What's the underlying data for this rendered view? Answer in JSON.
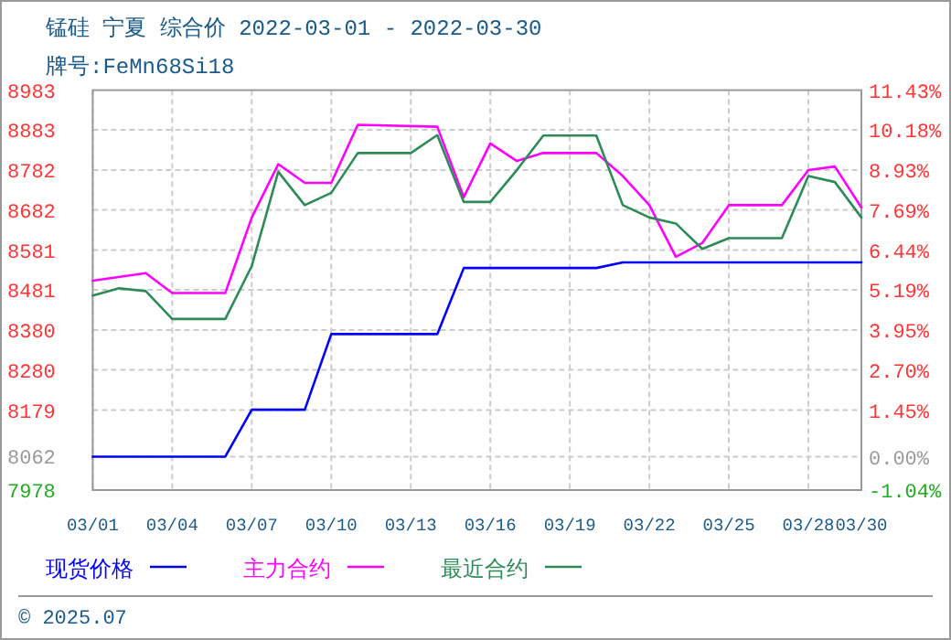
{
  "chart_data": {
    "type": "line",
    "title": "锰硅 宁夏 综合价 2022-03-01 - 2022-03-30",
    "subtitle": "牌号:FeMn68Si18",
    "annotations": [
      "© 2025.07"
    ],
    "xlim": [
      "2022-03-01",
      "2022-03-30"
    ],
    "xticks": [
      {
        "value": "2022-03-01",
        "label": "03/01"
      },
      {
        "value": "2022-03-04",
        "label": "03/04"
      },
      {
        "value": "2022-03-07",
        "label": "03/07"
      },
      {
        "value": "2022-03-10",
        "label": "03/10"
      },
      {
        "value": "2022-03-13",
        "label": "03/13"
      },
      {
        "value": "2022-03-16",
        "label": "03/16"
      },
      {
        "value": "2022-03-19",
        "label": "03/19"
      },
      {
        "value": "2022-03-22",
        "label": "03/22"
      },
      {
        "value": "2022-03-25",
        "label": "03/25"
      },
      {
        "value": "2022-03-28",
        "label": "03/28"
      },
      {
        "value": "2022-03-30",
        "label": "03/30"
      }
    ],
    "ylim": [
      7978,
      8983
    ],
    "yticks": [
      8983,
      8883,
      8782,
      8682,
      8581,
      8481,
      8380,
      8280,
      8179,
      8062,
      7978
    ],
    "y2lim": [
      -1.04,
      11.43
    ],
    "y2ticks": [
      {
        "value": 11.43,
        "label": "11.43%"
      },
      {
        "value": 10.18,
        "label": "10.18%"
      },
      {
        "value": 8.93,
        "label": "8.93%"
      },
      {
        "value": 7.69,
        "label": "7.69%"
      },
      {
        "value": 6.44,
        "label": "6.44%"
      },
      {
        "value": 5.19,
        "label": "5.19%"
      },
      {
        "value": 3.95,
        "label": "3.95%"
      },
      {
        "value": 2.7,
        "label": "2.70%"
      },
      {
        "value": 1.45,
        "label": "1.45%"
      },
      {
        "value": 0,
        "label": "0.00%"
      },
      {
        "value": -1.04,
        "label": "-1.04%"
      }
    ],
    "grid": true,
    "legend": "bottom",
    "marker": "none",
    "line_style": "solid",
    "series": [
      {
        "name": "现货价格",
        "color": "#0000ff",
        "x": [
          "2022-03-01",
          "2022-03-06",
          "2022-03-07",
          "2022-03-09",
          "2022-03-10",
          "2022-03-14",
          "2022-03-15",
          "2022-03-20",
          "2022-03-21",
          "2022-03-30"
        ],
        "values": [
          8062,
          8062,
          8180,
          8180,
          8370,
          8370,
          8536,
          8536,
          8550,
          8550
        ]
      },
      {
        "name": "主力合约",
        "color": "#ff00ff",
        "x": [
          "2022-03-01",
          "2022-03-03",
          "2022-03-04",
          "2022-03-06",
          "2022-03-07",
          "2022-03-08",
          "2022-03-09",
          "2022-03-10",
          "2022-03-11",
          "2022-03-14",
          "2022-03-15",
          "2022-03-16",
          "2022-03-17",
          "2022-03-18",
          "2022-03-20",
          "2022-03-21",
          "2022-03-22",
          "2022-03-23",
          "2022-03-24",
          "2022-03-25",
          "2022-03-27",
          "2022-03-28",
          "2022-03-29",
          "2022-03-30"
        ],
        "values": [
          8504,
          8523,
          8473,
          8473,
          8663,
          8797,
          8750,
          8750,
          8896,
          8891,
          8714,
          8849,
          8805,
          8825,
          8825,
          8767,
          8694,
          8564,
          8599,
          8694,
          8694,
          8782,
          8791,
          8688
        ]
      },
      {
        "name": "最近合约",
        "color": "#2e8b57",
        "x": [
          "2022-03-01",
          "2022-03-02",
          "2022-03-03",
          "2022-03-04",
          "2022-03-06",
          "2022-03-07",
          "2022-03-08",
          "2022-03-09",
          "2022-03-10",
          "2022-03-11",
          "2022-03-13",
          "2022-03-14",
          "2022-03-15",
          "2022-03-16",
          "2022-03-17",
          "2022-03-18",
          "2022-03-20",
          "2022-03-21",
          "2022-03-22",
          "2022-03-23",
          "2022-03-24",
          "2022-03-25",
          "2022-03-27",
          "2022-03-28",
          "2022-03-29",
          "2022-03-30"
        ],
        "values": [
          8467,
          8485,
          8478,
          8408,
          8408,
          8541,
          8778,
          8694,
          8725,
          8825,
          8825,
          8870,
          8702,
          8702,
          8782,
          8869,
          8869,
          8694,
          8663,
          8648,
          8584,
          8611,
          8611,
          8767,
          8752,
          8663
        ]
      }
    ]
  }
}
